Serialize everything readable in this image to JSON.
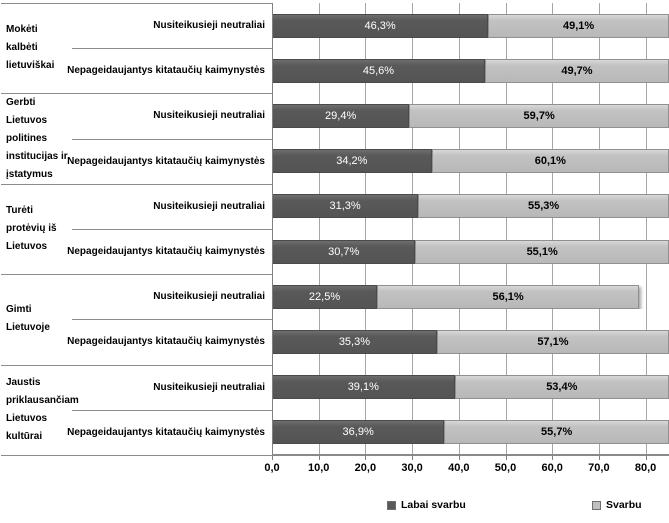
{
  "chart_data": {
    "type": "bar",
    "orientation": "horizontal-stacked",
    "title": "",
    "xlabel": "",
    "ylabel": "",
    "x_range": [
      0,
      85
    ],
    "grid": true,
    "legend_position": "bottom",
    "x_ticks": [
      "0,0",
      "10,0",
      "20,0",
      "30,0",
      "40,0",
      "50,0",
      "60,0",
      "70,0",
      "80,0"
    ],
    "series_names": [
      "Labai svarbu",
      "Svarbu"
    ],
    "colors": {
      "labai_svarbu": "#595959",
      "svarbu": "#bfbfbf"
    },
    "groups": [
      {
        "category": "Mokėti kalbėti\nlietuviškai",
        "rows": [
          {
            "label": "Nusiteikusieji neutraliai",
            "values": [
              46.3,
              49.1
            ],
            "display": [
              "46,3%",
              "49,1%"
            ]
          },
          {
            "label": "Nepageidaujantys kitataučių kaimynystės",
            "values": [
              45.6,
              49.7
            ],
            "display": [
              "45,6%",
              "49,7%"
            ]
          }
        ]
      },
      {
        "category": "Gerbti Lietuvos\npolitines\ninstitucijas ir\nįstatymus",
        "rows": [
          {
            "label": "Nusiteikusieji neutraliai",
            "values": [
              29.4,
              59.7
            ],
            "display": [
              "29,4%",
              "59,7%"
            ]
          },
          {
            "label": "Nepageidaujantys kitataučių kaimynystės",
            "values": [
              34.2,
              60.1
            ],
            "display": [
              "34,2%",
              "60,1%"
            ]
          }
        ]
      },
      {
        "category": "Turėti\nprotėvių iš\nLietuvos",
        "rows": [
          {
            "label": "Nusiteikusieji neutraliai",
            "values": [
              31.3,
              55.3
            ],
            "display": [
              "31,3%",
              "55,3%"
            ]
          },
          {
            "label": "Nepageidaujantys kitataučių kaimynystės",
            "values": [
              30.7,
              55.1
            ],
            "display": [
              "30,7%",
              "55,1%"
            ]
          }
        ]
      },
      {
        "category": "Gimti\nLietuvoje",
        "rows": [
          {
            "label": "Nusiteikusieji neutraliai",
            "values": [
              22.5,
              56.1
            ],
            "display": [
              "22,5%",
              "56,1%"
            ]
          },
          {
            "label": "Nepageidaujantys kitataučių kaimynystės",
            "values": [
              35.3,
              57.1
            ],
            "display": [
              "35,3%",
              "57,1%"
            ]
          }
        ]
      },
      {
        "category": "Jaustis\npriklausančiam\nLietuvos\nkultūrai",
        "rows": [
          {
            "label": "Nusiteikusieji neutraliai",
            "values": [
              39.1,
              53.4
            ],
            "display": [
              "39,1%",
              "53,4%"
            ]
          },
          {
            "label": "Nepageidaujantys kitataučių kaimynystės",
            "values": [
              36.9,
              55.7
            ],
            "display": [
              "36,9%",
              "55,7%"
            ]
          }
        ]
      }
    ]
  },
  "legend": {
    "items": [
      {
        "label": "Labai svarbu",
        "color": "#595959"
      },
      {
        "label": "Svarbu",
        "color": "#bfbfbf"
      }
    ]
  }
}
